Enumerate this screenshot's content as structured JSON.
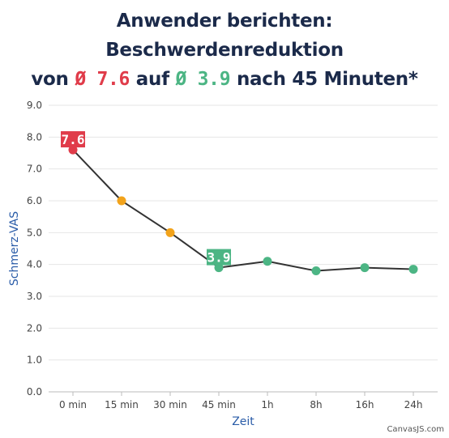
{
  "title": {
    "line1": "Anwender berichten: Beschwerdenreduktion",
    "line2_pre": "von ",
    "line2_red": "Ø 7.6",
    "line2_mid": " auf ",
    "line2_green": "Ø 3.9",
    "line2_post": " nach 45 Minuten*"
  },
  "credit": "CanvasJS.com",
  "colors": {
    "red": "#e03c4a",
    "orange": "#f2a31b",
    "green": "#4cb584",
    "line": "#333333",
    "grid": "#e6e6e6",
    "axis_title": "#2a5ca8"
  },
  "chart_data": {
    "type": "line",
    "title": "Anwender berichten: Beschwerdenreduktion von Ø 7.6 auf Ø 3.9 nach 45 Minuten*",
    "xlabel": "Zeit",
    "ylabel": "Schmerz-VAS",
    "ylim": [
      0,
      9
    ],
    "yticks": [
      "0.0",
      "1.0",
      "2.0",
      "3.0",
      "4.0",
      "5.0",
      "6.0",
      "7.0",
      "8.0",
      "9.0"
    ],
    "categories": [
      "0 min",
      "15 min",
      "30 min",
      "45 min",
      "1h",
      "8h",
      "16h",
      "24h"
    ],
    "values": [
      7.6,
      6.0,
      5.0,
      3.9,
      4.1,
      3.8,
      3.9,
      3.85
    ],
    "point_colors": [
      "red",
      "orange",
      "orange",
      "green",
      "green",
      "green",
      "green",
      "green"
    ],
    "data_labels": [
      {
        "index": 0,
        "text": "7.6",
        "color": "red"
      },
      {
        "index": 3,
        "text": "3.9",
        "color": "green"
      }
    ],
    "grid": true,
    "legend": "none"
  }
}
